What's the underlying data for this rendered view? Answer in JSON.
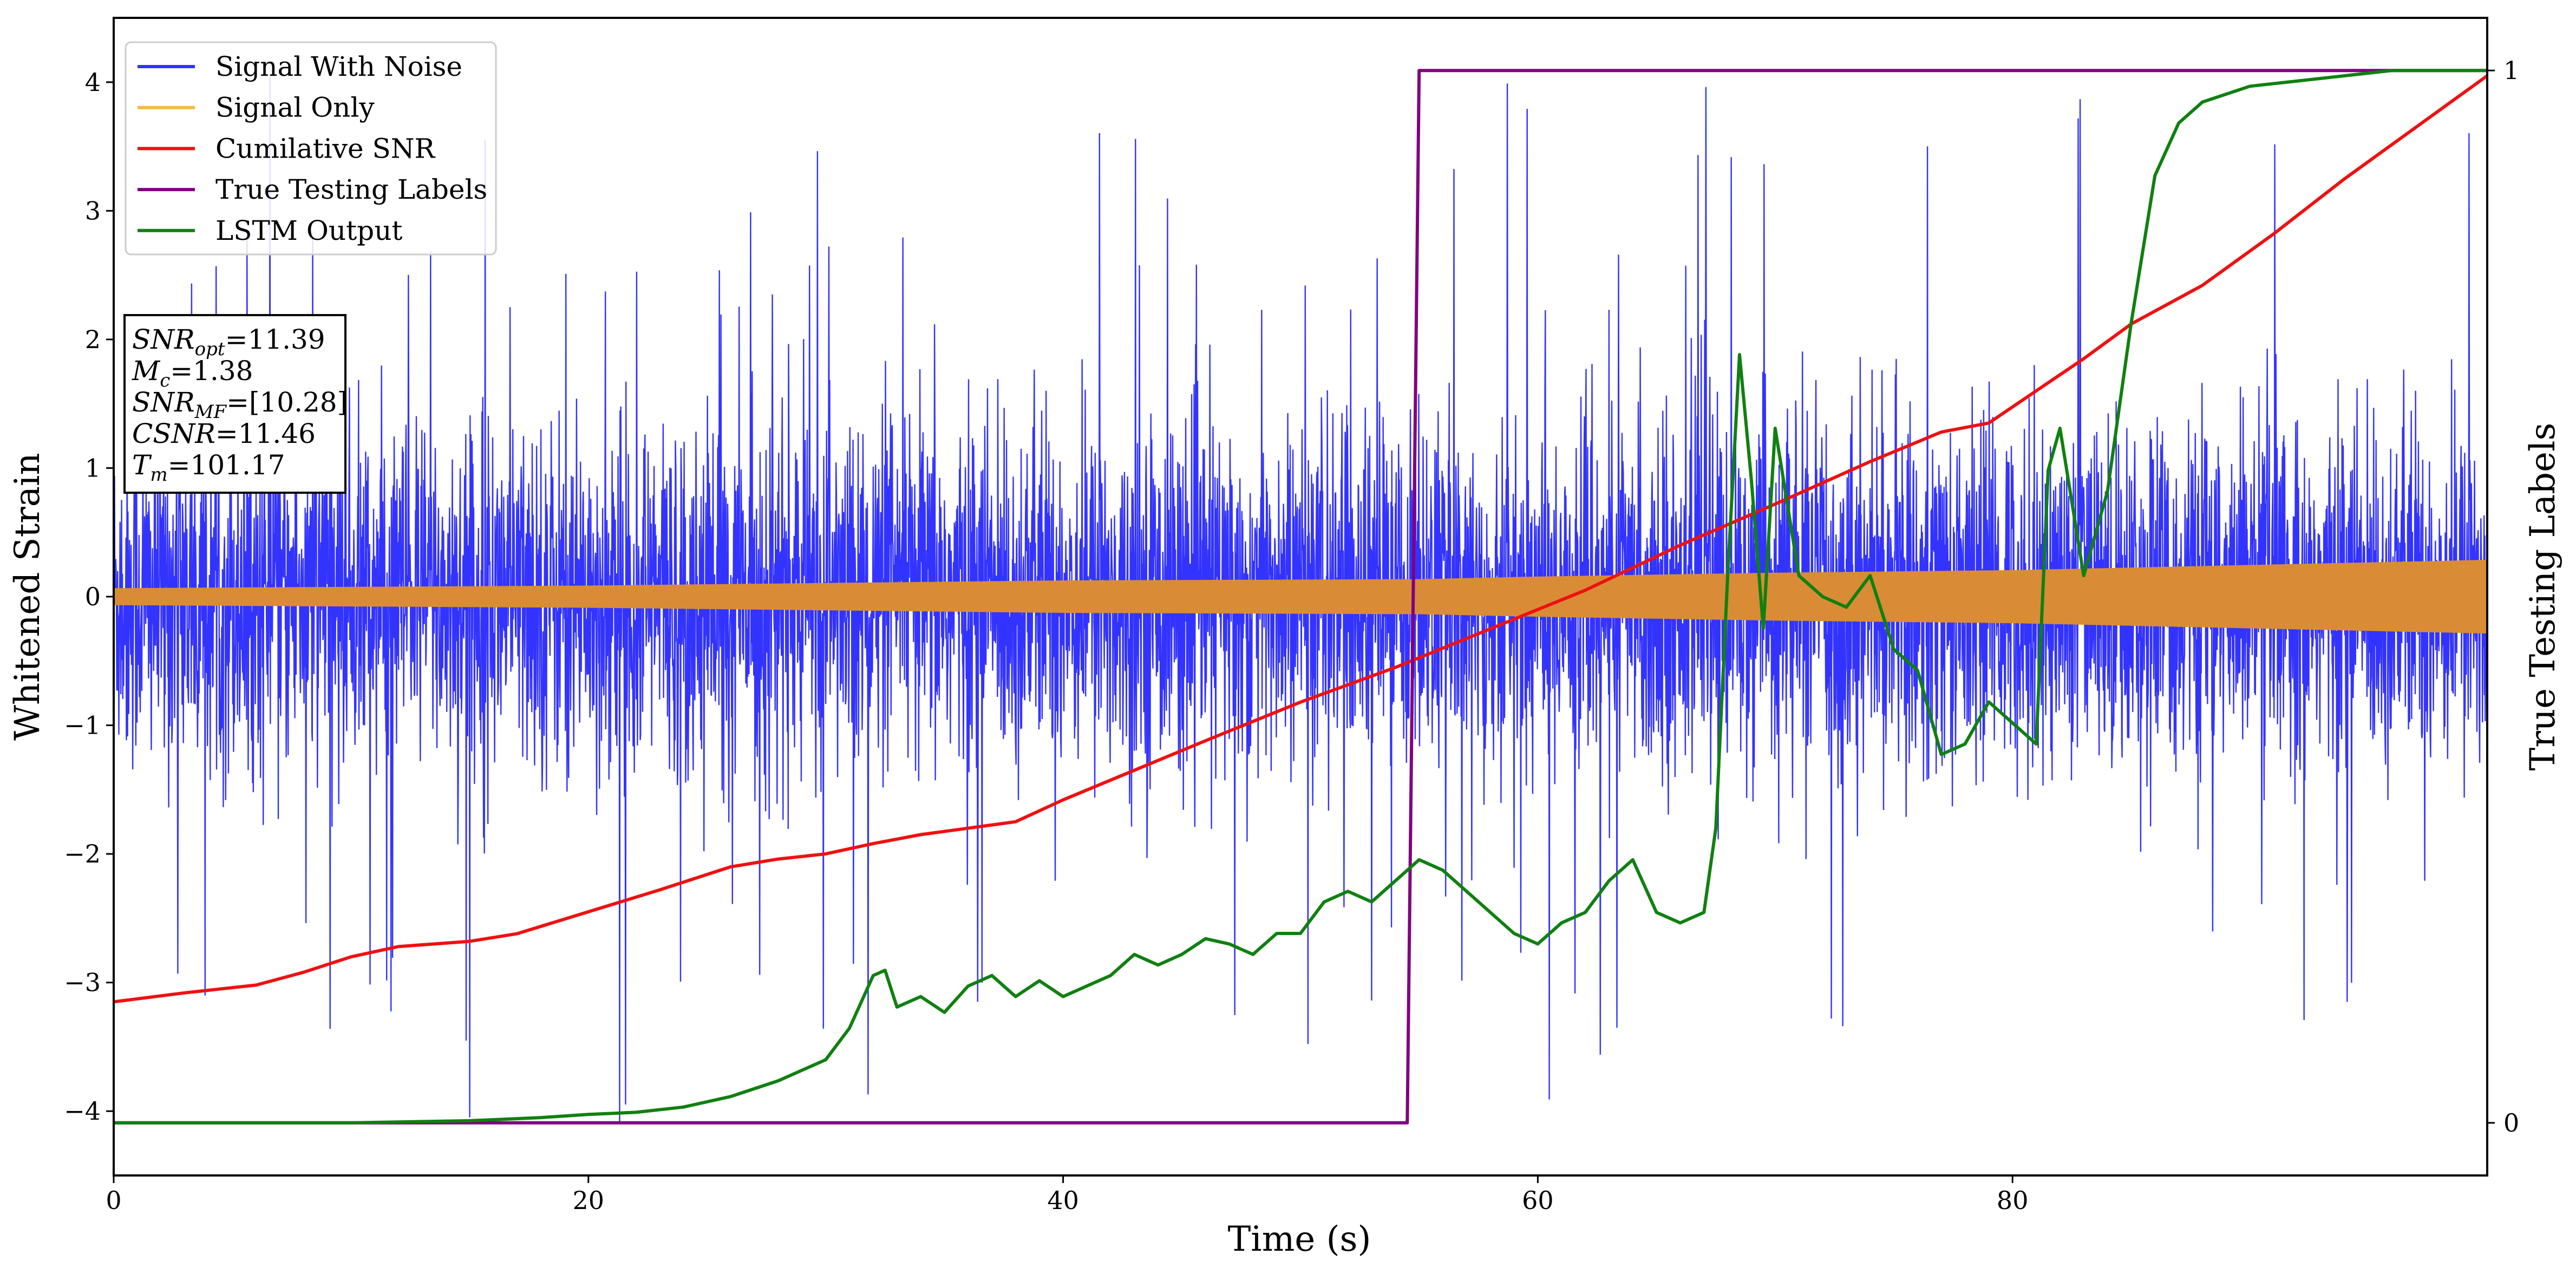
{
  "chart_data": {
    "type": "line",
    "xlabel": "Time (s)",
    "ylabel": "Whitened Strain",
    "y2label": "True Testing Labels",
    "xlim": [
      0,
      100
    ],
    "ylim": [
      -4.5,
      4.5
    ],
    "y2lim": [
      -0.05,
      1.05
    ],
    "xticks": [
      "0",
      "20",
      "40",
      "60",
      "80"
    ],
    "yticks": [
      "−4",
      "−3",
      "−2",
      "−1",
      "0",
      "1",
      "2",
      "3",
      "4"
    ],
    "y2ticks": [
      "0",
      "1"
    ],
    "grid": false,
    "legend_position": "top-left",
    "legend": [
      {
        "label": "Signal With Noise",
        "color": "#3333ff"
      },
      {
        "label": "Signal Only",
        "color": "#f5b942"
      },
      {
        "label": "Cumilative SNR",
        "color": "#ee1111"
      },
      {
        "label": "True Testing Labels",
        "color": "#800080"
      },
      {
        "label": "LSTM Output",
        "color": "#108010"
      }
    ],
    "series": [
      {
        "name": "Signal With Noise",
        "axis": "left",
        "color": "#3333ff",
        "kind": "noise-band",
        "amplitude_typical": 1.5,
        "amplitude_peak": 4.1
      },
      {
        "name": "Signal Only",
        "axis": "left",
        "color": "#d98c35",
        "kind": "envelope",
        "x": [
          0,
          10,
          20,
          30,
          40,
          55,
          60,
          70,
          80,
          90,
          100
        ],
        "amplitude": [
          0.06,
          0.07,
          0.08,
          0.1,
          0.12,
          0.13,
          0.15,
          0.18,
          0.2,
          0.24,
          0.28
        ]
      },
      {
        "name": "Cumilative SNR",
        "axis": "left",
        "color": "#ee1111",
        "x": [
          0,
          3,
          6,
          8,
          10,
          12,
          15,
          17,
          20,
          23,
          26,
          28,
          30,
          32,
          34,
          36,
          38,
          40,
          43,
          46,
          50,
          54,
          58,
          62,
          66,
          70,
          74,
          77,
          79,
          81,
          83,
          85,
          88,
          91,
          94,
          97,
          100
        ],
        "y": [
          -3.15,
          -3.08,
          -3.02,
          -2.92,
          -2.8,
          -2.72,
          -2.68,
          -2.62,
          -2.45,
          -2.28,
          -2.1,
          -2.04,
          -2.0,
          -1.92,
          -1.85,
          -1.8,
          -1.75,
          -1.58,
          -1.35,
          -1.12,
          -0.82,
          -0.55,
          -0.25,
          0.05,
          0.4,
          0.72,
          1.05,
          1.28,
          1.35,
          1.6,
          1.85,
          2.12,
          2.42,
          2.82,
          3.25,
          3.65,
          4.05
        ]
      },
      {
        "name": "True Testing Labels",
        "axis": "right",
        "color": "#800080",
        "x": [
          0,
          54.5,
          55,
          100
        ],
        "y": [
          0,
          0,
          1,
          1
        ]
      },
      {
        "name": "LSTM Output",
        "axis": "right",
        "color": "#108010",
        "x": [
          0,
          10,
          15,
          18,
          20,
          22,
          24,
          26,
          28,
          30,
          31,
          32,
          32.5,
          33,
          34,
          35,
          36,
          37,
          38,
          39,
          40,
          41,
          42,
          43,
          44,
          45,
          46,
          47,
          48,
          49,
          50,
          51,
          52,
          53,
          54,
          55,
          56,
          57,
          58,
          59,
          60,
          61,
          62,
          63,
          64,
          65,
          66,
          67,
          67.5,
          68,
          68.5,
          69,
          69.5,
          70,
          71,
          72,
          73,
          74,
          75,
          76,
          77,
          78,
          79,
          80,
          81,
          81.5,
          82,
          83,
          84,
          85,
          86,
          87,
          88,
          90,
          92,
          94,
          96,
          100
        ],
        "y": [
          0,
          0,
          0.002,
          0.005,
          0.008,
          0.01,
          0.015,
          0.025,
          0.04,
          0.06,
          0.09,
          0.14,
          0.145,
          0.11,
          0.12,
          0.105,
          0.13,
          0.14,
          0.12,
          0.135,
          0.12,
          0.13,
          0.14,
          0.16,
          0.15,
          0.16,
          0.175,
          0.17,
          0.16,
          0.18,
          0.18,
          0.21,
          0.22,
          0.21,
          0.23,
          0.25,
          0.24,
          0.22,
          0.2,
          0.18,
          0.17,
          0.19,
          0.2,
          0.23,
          0.25,
          0.2,
          0.19,
          0.2,
          0.28,
          0.52,
          0.73,
          0.61,
          0.47,
          0.66,
          0.52,
          0.5,
          0.49,
          0.52,
          0.45,
          0.43,
          0.35,
          0.36,
          0.4,
          0.38,
          0.36,
          0.62,
          0.66,
          0.52,
          0.6,
          0.76,
          0.9,
          0.95,
          0.97,
          0.985,
          0.99,
          0.995,
          1.0,
          1.0
        ]
      }
    ],
    "annotation_box": {
      "position": "upper-left",
      "lines": [
        {
          "var": "SNR",
          "sub": "opt",
          "value": "=11.39"
        },
        {
          "var": "M",
          "sub": "c",
          "value": "=1.38"
        },
        {
          "var": "SNR",
          "sub": "MF",
          "value": "=[10.28]"
        },
        {
          "var": "CSNR",
          "sub": "",
          "value": "=11.46"
        },
        {
          "var": "T",
          "sub": "m",
          "value": "=101.17"
        }
      ]
    }
  }
}
